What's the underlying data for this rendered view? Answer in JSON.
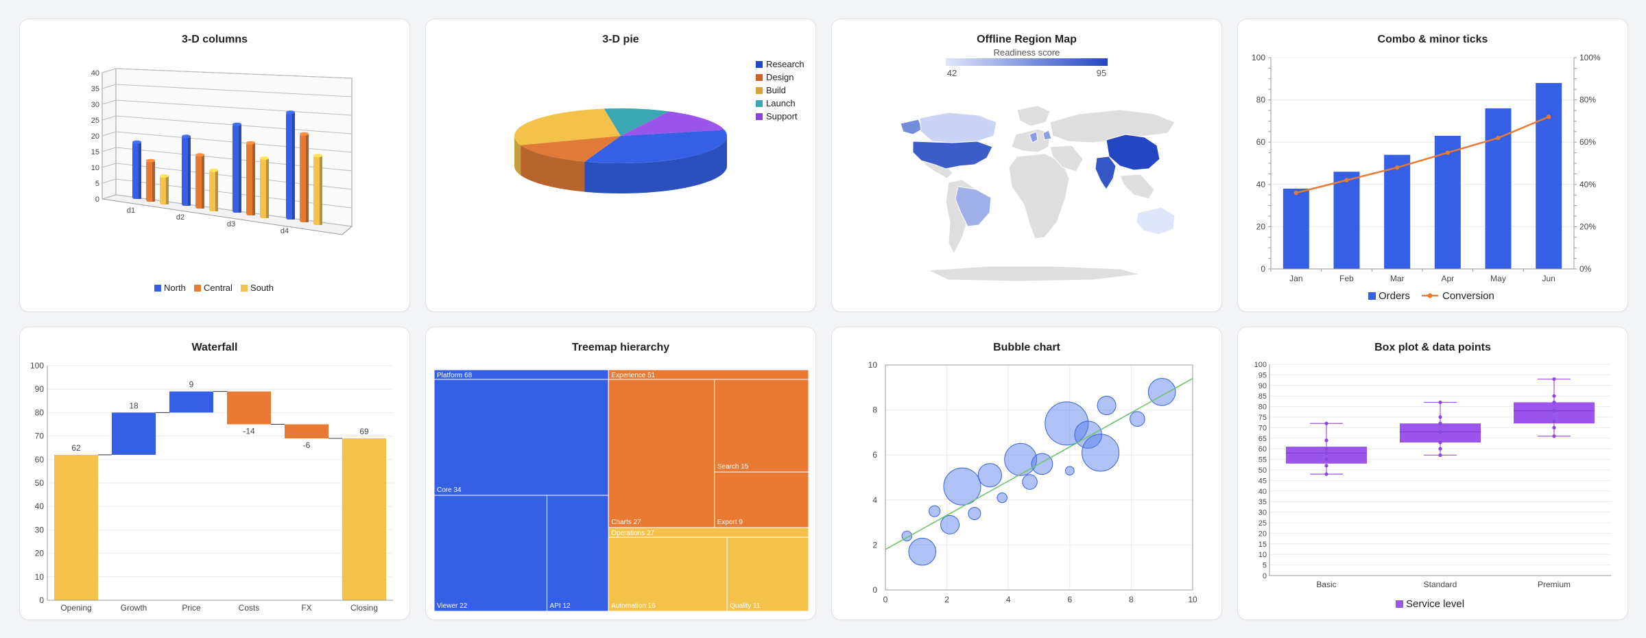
{
  "colors": {
    "blue": "#3560e6",
    "orange": "#e97a34",
    "yellow": "#f4c24a",
    "purple": "#9b55ea",
    "teal": "#3aa7b3",
    "dark_blue": "#2347c2",
    "gray_land": "#dedede",
    "green_line": "#6fc36a"
  },
  "chart_data": [
    {
      "id": "columns3d",
      "type": "bar",
      "title": "3-D columns",
      "categories": [
        "d1",
        "d2",
        "d3",
        "d4"
      ],
      "series": [
        {
          "name": "North",
          "values": [
            18,
            22,
            28,
            34
          ]
        },
        {
          "name": "Central",
          "values": [
            13,
            17,
            23,
            28
          ]
        },
        {
          "name": "South",
          "values": [
            9,
            13,
            19,
            22
          ]
        }
      ],
      "y_ticks": [
        "0",
        "5",
        "10",
        "15",
        "20",
        "25",
        "30",
        "35",
        "40"
      ],
      "ylim": [
        0,
        40
      ],
      "legend": "bottom",
      "grid": true
    },
    {
      "id": "pie3d",
      "type": "pie",
      "title": "3-D pie",
      "labels": [
        "Research",
        "Design",
        "Build",
        "Launch",
        "Support"
      ],
      "values": [
        34,
        14,
        28,
        10,
        14
      ],
      "legend": "top-right"
    },
    {
      "id": "regionmap",
      "type": "heatmap",
      "title": "Offline Region Map",
      "colorbar": {
        "label": "Readiness score",
        "min": 42,
        "max": 95,
        "min_label": "42",
        "max_label": "95"
      },
      "regions": [
        {
          "name": "United States",
          "value": 88
        },
        {
          "name": "China",
          "value": 95
        },
        {
          "name": "India",
          "value": 90
        },
        {
          "name": "Canada",
          "value": 48
        },
        {
          "name": "Brazil",
          "value": 60
        },
        {
          "name": "Australia",
          "value": 42
        },
        {
          "name": "Alaska",
          "value": 72
        },
        {
          "name": "Europe",
          "value": 66
        }
      ]
    },
    {
      "id": "combo",
      "type": "bar",
      "title": "Combo & minor ticks",
      "categories": [
        "Jan",
        "Feb",
        "Mar",
        "Apr",
        "May",
        "Jun"
      ],
      "series": [
        {
          "name": "Orders",
          "values": [
            38,
            46,
            54,
            63,
            76,
            88
          ]
        },
        {
          "name": "Conversion",
          "values": [
            36,
            42,
            48,
            55,
            62,
            72
          ],
          "axis": "right"
        }
      ],
      "y_ticks": [
        "0",
        "20",
        "40",
        "60",
        "80",
        "100"
      ],
      "ylim": [
        0,
        100
      ],
      "y2_ticks": [
        "0%",
        "20%",
        "40%",
        "60%",
        "80%",
        "100%"
      ],
      "y2lim": [
        0,
        100
      ],
      "legend": "bottom",
      "grid": true
    },
    {
      "id": "waterfall",
      "type": "bar",
      "title": "Waterfall",
      "categories": [
        "Opening",
        "Growth",
        "Price",
        "Costs",
        "FX",
        "Closing"
      ],
      "values": [
        62,
        18,
        9,
        -14,
        -6,
        69
      ],
      "value_labels": [
        "62",
        "18",
        "9",
        "-14",
        "-6",
        "69"
      ],
      "y_ticks": [
        "0",
        "10",
        "20",
        "30",
        "40",
        "50",
        "60",
        "70",
        "80",
        "90",
        "100"
      ],
      "ylim": [
        0,
        100
      ],
      "grid": true
    },
    {
      "id": "treemap",
      "type": "table",
      "title": "Treemap hierarchy",
      "groups": [
        {
          "name": "Platform",
          "value": 68,
          "label": "Platform 68",
          "children": [
            {
              "name": "Core",
              "value": 34,
              "label": "Core 34"
            },
            {
              "name": "Viewer",
              "value": 22,
              "label": "Viewer 22"
            },
            {
              "name": "API",
              "value": 12,
              "label": "API 12"
            }
          ]
        },
        {
          "name": "Experience",
          "value": 51,
          "label": "Experience 51",
          "children": [
            {
              "name": "Charts",
              "value": 27,
              "label": "Charts 27"
            },
            {
              "name": "Search",
              "value": 15,
              "label": "Search 15"
            },
            {
              "name": "Export",
              "value": 9,
              "label": "Export 9"
            }
          ]
        },
        {
          "name": "Operations",
          "value": 27,
          "label": "Operations 27",
          "children": [
            {
              "name": "Automation",
              "value": 16,
              "label": "Automation 16"
            },
            {
              "name": "Quality",
              "value": 11,
              "label": "Quality 11"
            }
          ]
        }
      ]
    },
    {
      "id": "bubble",
      "type": "scatter",
      "title": "Bubble chart",
      "x_ticks": [
        "0",
        "2",
        "4",
        "6",
        "8",
        "10"
      ],
      "y_ticks": [
        "0",
        "2",
        "4",
        "6",
        "8",
        "10"
      ],
      "xlim": [
        0,
        10
      ],
      "ylim": [
        0,
        10
      ],
      "grid": true,
      "points": [
        [
          0.7,
          2.4,
          0.8
        ],
        [
          1.2,
          1.7,
          2.2
        ],
        [
          1.6,
          3.5,
          0.9
        ],
        [
          2.1,
          2.9,
          1.5
        ],
        [
          2.5,
          4.6,
          3
        ],
        [
          2.9,
          3.4,
          1
        ],
        [
          3.4,
          5.1,
          1.9
        ],
        [
          3.8,
          4.1,
          0.8
        ],
        [
          4.4,
          5.8,
          2.6
        ],
        [
          4.7,
          4.8,
          1.2
        ],
        [
          5.1,
          5.6,
          1.7
        ],
        [
          5.9,
          7.4,
          3.5
        ],
        [
          6.0,
          5.3,
          0.7
        ],
        [
          6.6,
          6.9,
          2.2
        ],
        [
          7.0,
          6.1,
          3
        ],
        [
          7.2,
          8.2,
          1.5
        ],
        [
          8.2,
          7.6,
          1.2
        ],
        [
          9.0,
          8.8,
          2.2
        ]
      ],
      "trend": [
        [
          0,
          1.8
        ],
        [
          10,
          9.4
        ]
      ]
    },
    {
      "id": "boxplot",
      "type": "scatter",
      "title": "Box plot & data points",
      "categories": [
        "Basic",
        "Standard",
        "Premium"
      ],
      "series": [
        {
          "name": "Service level"
        }
      ],
      "boxes": [
        {
          "min": 48,
          "q1": 53,
          "median": 58,
          "q3": 61,
          "max": 72,
          "points": [
            48,
            52,
            55,
            58,
            60,
            64,
            72
          ]
        },
        {
          "min": 57,
          "q1": 63,
          "median": 68,
          "q3": 72,
          "max": 82,
          "points": [
            57,
            60,
            63,
            68,
            72,
            75,
            82
          ]
        },
        {
          "min": 66,
          "q1": 72,
          "median": 78,
          "q3": 82,
          "max": 93,
          "points": [
            66,
            70,
            73,
            78,
            82,
            85,
            93
          ]
        }
      ],
      "y_ticks": [
        "0",
        "5",
        "10",
        "15",
        "20",
        "25",
        "30",
        "35",
        "40",
        "45",
        "50",
        "55",
        "60",
        "65",
        "70",
        "75",
        "80",
        "85",
        "90",
        "95",
        "100"
      ],
      "ylim": [
        0,
        100
      ],
      "legend": "bottom",
      "grid": true
    }
  ]
}
